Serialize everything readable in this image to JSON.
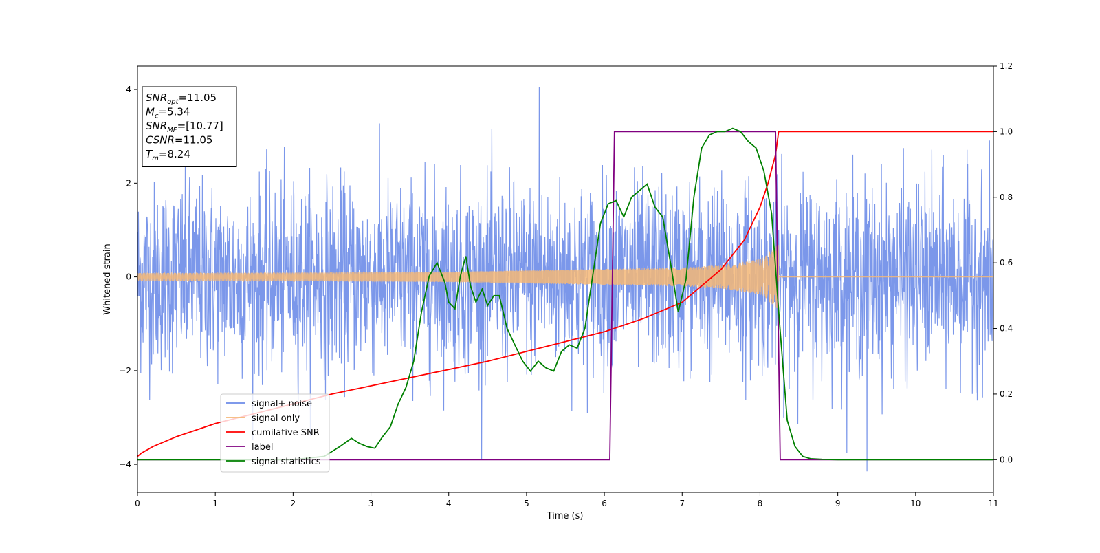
{
  "chart_data": {
    "type": "line",
    "title": "",
    "xlabel": "Time (s)",
    "ylabel": "Whitened strain",
    "xlim": [
      0,
      11
    ],
    "ylim_left": [
      -4.6,
      4.5
    ],
    "ylim_right": [
      -0.1,
      1.2
    ],
    "x_ticks": [
      0,
      1,
      2,
      3,
      4,
      5,
      6,
      7,
      8,
      9,
      10,
      11
    ],
    "y_ticks_left": [
      -4,
      -2,
      0,
      2,
      4
    ],
    "y_ticks_right": [
      0.0,
      0.2,
      0.4,
      0.6,
      0.8,
      1.0,
      1.2
    ],
    "grid": false,
    "legend_placement": "lower-left",
    "info_box": {
      "lines": [
        {
          "var": "SNR",
          "sub": "opt",
          "value": "=11.05"
        },
        {
          "var": "M",
          "sub": "c",
          "value": "=5.34"
        },
        {
          "var": "SNR",
          "sub": "MF",
          "value": "=[10.77]"
        },
        {
          "var": "CSNR",
          "sub": "",
          "value": "=11.05"
        },
        {
          "var": "T",
          "sub": "m",
          "value": "=8.24"
        }
      ]
    },
    "series": [
      {
        "name": "signal+ noise",
        "axis": "left",
        "color": "#6d8ce8",
        "kind": "noise",
        "std": 1.0,
        "extreme_values": [
          4.05,
          -4.15
        ],
        "x_range": [
          0,
          11
        ]
      },
      {
        "name": "signal only",
        "axis": "left",
        "color": "#f5b777",
        "kind": "chirp",
        "amplitude_at_x": [
          [
            0,
            0.08
          ],
          [
            2,
            0.09
          ],
          [
            4,
            0.11
          ],
          [
            6,
            0.17
          ],
          [
            7,
            0.2
          ],
          [
            7.5,
            0.25
          ],
          [
            8,
            0.38
          ],
          [
            8.2,
            0.65
          ],
          [
            8.24,
            0.7
          ]
        ],
        "ends_at": 8.24
      },
      {
        "name": "cumilative SNR",
        "axis": "right",
        "color": "#ff0000",
        "x": [
          0,
          0.05,
          0.2,
          0.5,
          1,
          1.5,
          2,
          2.5,
          3,
          3.5,
          4,
          4.5,
          5,
          5.5,
          6,
          6.5,
          7,
          7.5,
          7.8,
          8,
          8.1,
          8.2,
          8.24,
          11
        ],
        "values": [
          0.01,
          0.02,
          0.04,
          0.07,
          0.11,
          0.14,
          0.17,
          0.2,
          0.225,
          0.25,
          0.275,
          0.3,
          0.33,
          0.36,
          0.39,
          0.43,
          0.48,
          0.58,
          0.67,
          0.77,
          0.84,
          0.93,
          1.0,
          1.0
        ]
      },
      {
        "name": "label",
        "axis": "right",
        "color": "#800080",
        "x": [
          0,
          6.07,
          6.13,
          8.2,
          8.26,
          11
        ],
        "values": [
          0,
          0,
          1,
          1,
          0,
          0
        ]
      },
      {
        "name": "signal statistics",
        "axis": "right",
        "color": "#008000",
        "x": [
          0,
          1,
          2,
          2.4,
          2.6,
          2.75,
          2.85,
          2.95,
          3.05,
          3.15,
          3.25,
          3.35,
          3.45,
          3.55,
          3.65,
          3.75,
          3.85,
          3.95,
          4.0,
          4.08,
          4.15,
          4.22,
          4.28,
          4.35,
          4.43,
          4.5,
          4.58,
          4.65,
          4.75,
          4.85,
          4.95,
          5.05,
          5.15,
          5.25,
          5.35,
          5.45,
          5.55,
          5.65,
          5.75,
          5.85,
          5.95,
          6.05,
          6.15,
          6.25,
          6.35,
          6.45,
          6.55,
          6.65,
          6.75,
          6.85,
          6.95,
          7.05,
          7.15,
          7.25,
          7.35,
          7.45,
          7.55,
          7.65,
          7.75,
          7.85,
          7.95,
          8.05,
          8.15,
          8.25,
          8.35,
          8.45,
          8.55,
          8.65,
          8.8,
          9.0,
          10,
          11
        ],
        "values": [
          0.0,
          0.0,
          0.0,
          0.01,
          0.04,
          0.065,
          0.05,
          0.04,
          0.035,
          0.07,
          0.1,
          0.17,
          0.22,
          0.3,
          0.45,
          0.56,
          0.6,
          0.54,
          0.48,
          0.46,
          0.56,
          0.62,
          0.53,
          0.48,
          0.52,
          0.47,
          0.5,
          0.5,
          0.4,
          0.35,
          0.3,
          0.27,
          0.3,
          0.28,
          0.27,
          0.33,
          0.35,
          0.34,
          0.4,
          0.56,
          0.72,
          0.78,
          0.79,
          0.74,
          0.8,
          0.82,
          0.84,
          0.77,
          0.74,
          0.6,
          0.45,
          0.55,
          0.8,
          0.95,
          0.99,
          1.0,
          1.0,
          1.01,
          1.0,
          0.97,
          0.95,
          0.88,
          0.75,
          0.42,
          0.12,
          0.04,
          0.01,
          0.003,
          0.001,
          0.0,
          0.0,
          0.0
        ]
      }
    ]
  }
}
